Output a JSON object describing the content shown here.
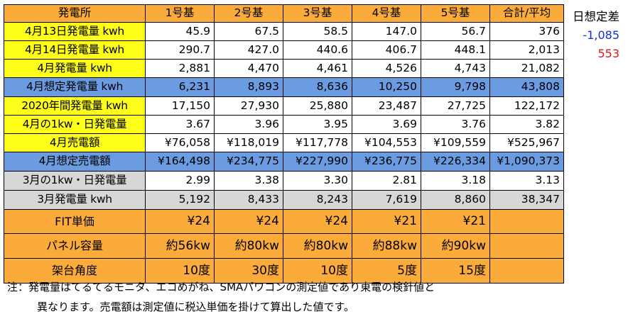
{
  "header": [
    "発電所",
    "1号基",
    "2号基",
    "3号基",
    "4号基",
    "5号基",
    "合計/平均"
  ],
  "rows": [
    {
      "label": "4月13日発電量 kwh",
      "values": [
        "45.9",
        "67.5",
        "58.5",
        "147.0",
        "56.7",
        "376"
      ]
    },
    {
      "label": "4月14日発電量 kwh",
      "values": [
        "290.7",
        "427.0",
        "440.6",
        "406.7",
        "448.1",
        "2,013"
      ]
    },
    {
      "label": "4月発電量 kwh",
      "values": [
        "2,881",
        "4,470",
        "4,461",
        "4,526",
        "4,743",
        "21,082"
      ]
    },
    {
      "label": "4月想定発電量 kwh",
      "values": [
        "6,231",
        "8,893",
        "8,636",
        "10,250",
        "9,798",
        "43,808"
      ]
    },
    {
      "label": "2020年間発電量 kwh",
      "values": [
        "17,150",
        "27,930",
        "25,880",
        "23,487",
        "27,725",
        "122,172"
      ]
    },
    {
      "label": "4月の1kw・日発電量",
      "values": [
        "3.67",
        "3.96",
        "3.95",
        "3.69",
        "3.76",
        "3.82"
      ]
    },
    {
      "label": "4月売電額",
      "values": [
        "¥76,058",
        "¥118,019",
        "¥117,778",
        "¥104,553",
        "¥109,559",
        "¥525,967"
      ]
    },
    {
      "label": "4月想定売電額",
      "values": [
        "¥164,498",
        "¥234,775",
        "¥227,990",
        "¥236,775",
        "¥226,334",
        "¥1,090,373"
      ]
    },
    {
      "label": "3月の1kw・日発電量",
      "values": [
        "2.99",
        "3.38",
        "3.30",
        "2.81",
        "3.18",
        "3.13"
      ]
    },
    {
      "label": "3月発電量 kwh",
      "values": [
        "5,192",
        "8,433",
        "8,243",
        "7,619",
        "8,860",
        "38,347"
      ]
    },
    {
      "label": "FIT単価",
      "values": [
        "¥24",
        "¥24",
        "¥24",
        "¥21",
        "¥21",
        ""
      ]
    },
    {
      "label": "パネル容量",
      "values": [
        "約56kw",
        "約80kw",
        "約80kw",
        "約88kw",
        "約90kw",
        ""
      ]
    },
    {
      "label": "架台角度",
      "values": [
        "10度",
        "30度",
        "10度",
        "5度",
        "15度",
        ""
      ]
    }
  ],
  "side": {
    "title": "日想定差",
    "diff1": "-1,085",
    "diff2": "553"
  },
  "notes": {
    "line1": "注：発電量はてるてるモニタ、エコめがね、SMAパワコンの測定値であり東電の検針値と",
    "line2": "異なります。売電額は測定値に税込単価を掛けて算出した値です。"
  },
  "colors": {
    "orange": "#fbab3a",
    "yellow": "#fefe1a",
    "blue": "#6b9be0",
    "gray": "#d7d7d7",
    "diff1": "#1a2dd6",
    "diff2": "#e01818"
  }
}
